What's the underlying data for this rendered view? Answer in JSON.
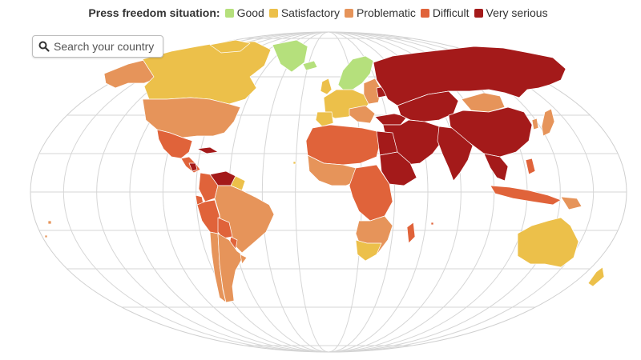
{
  "legend": {
    "title": "Press freedom situation:",
    "items": [
      {
        "label": "Good",
        "color": "#b5e07c"
      },
      {
        "label": "Satisfactory",
        "color": "#ecc04a"
      },
      {
        "label": "Problematic",
        "color": "#e6945a"
      },
      {
        "label": "Difficult",
        "color": "#e0633a"
      },
      {
        "label": "Very serious",
        "color": "#a41a1a"
      }
    ]
  },
  "search": {
    "placeholder": "Search your country ..."
  },
  "map": {
    "projection": "robinson",
    "ocean_color": "#ffffff",
    "graticule_color": "#d6d6d6",
    "border_color": "#ffffff"
  }
}
